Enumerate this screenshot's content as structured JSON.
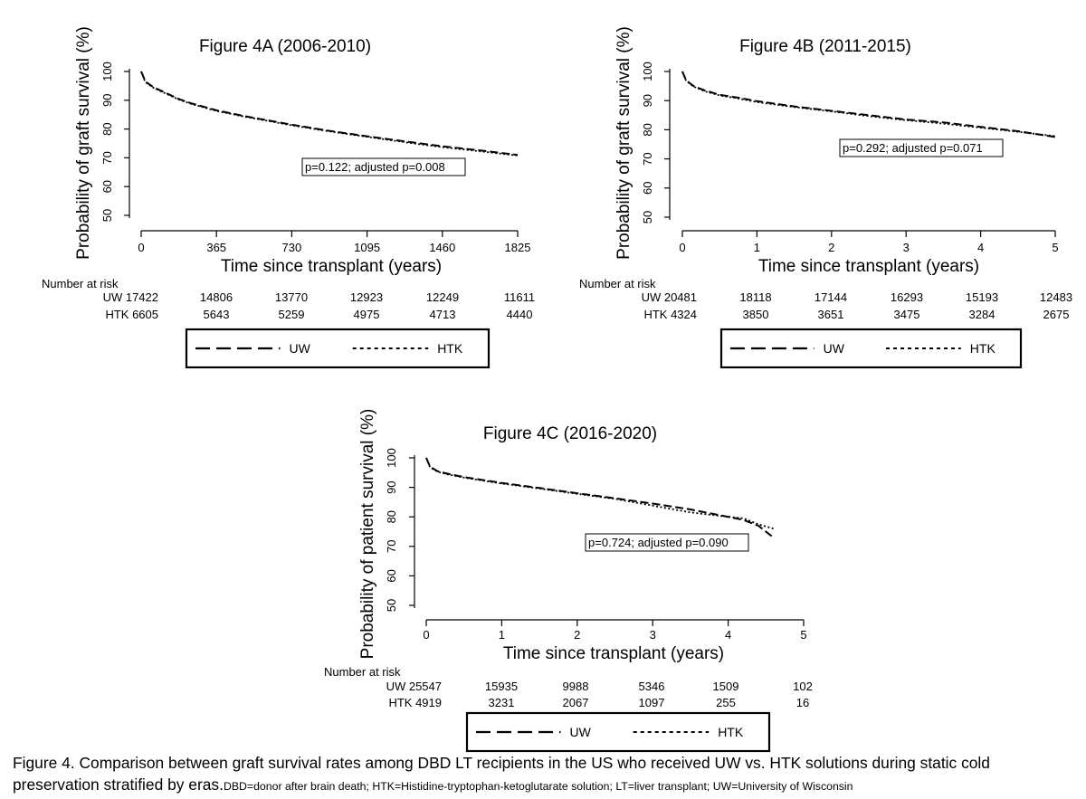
{
  "chart_data": [
    {
      "type": "line",
      "title": "Figure 4A (2006-2010)",
      "xlabel": "Time since transplant (years)",
      "ylabel": "Probability of graft survival (%)",
      "xticks": [
        "0",
        "365",
        "730",
        "1095",
        "1460",
        "1825"
      ],
      "xlim": [
        0,
        1825
      ],
      "yticks": [
        "50",
        "60",
        "70",
        "80",
        "90",
        "100"
      ],
      "ylim": [
        50,
        100
      ],
      "series": [
        {
          "name": "UW",
          "style": "dashed",
          "x": [
            0,
            20,
            60,
            120,
            180,
            240,
            365,
            500,
            730,
            900,
            1095,
            1300,
            1460,
            1650,
            1825
          ],
          "y": [
            100,
            96.5,
            94.5,
            92.5,
            90.5,
            89,
            86.5,
            84.5,
            81.5,
            79.5,
            77.5,
            75.5,
            74,
            72.5,
            71
          ]
        },
        {
          "name": "HTK",
          "style": "dotted",
          "x": [
            0,
            20,
            60,
            120,
            180,
            240,
            365,
            500,
            730,
            900,
            1095,
            1300,
            1460,
            1650,
            1825
          ],
          "y": [
            100,
            96.3,
            94.3,
            92.3,
            90.3,
            88.8,
            86.3,
            84.3,
            81.3,
            79.3,
            77.3,
            75.2,
            73.7,
            72.2,
            70.8
          ]
        }
      ],
      "annotation": "p=0.122; adjusted p=0.008",
      "risk_table": {
        "header": "Number at risk",
        "rows": [
          {
            "label": "UW",
            "values": [
              "17422",
              "14806",
              "13770",
              "12923",
              "12249",
              "11611"
            ]
          },
          {
            "label": "HTK",
            "values": [
              "6605",
              "5643",
              "5259",
              "4975",
              "4713",
              "4440"
            ]
          }
        ]
      },
      "legend": [
        "UW",
        "HTK"
      ]
    },
    {
      "type": "line",
      "title": "Figure 4B (2011-2015)",
      "xlabel": "Time since transplant (years)",
      "ylabel": "Probability of graft survival (%)",
      "xticks": [
        "0",
        "1",
        "2",
        "3",
        "4",
        "5"
      ],
      "xlim": [
        0,
        5
      ],
      "yticks": [
        "50",
        "60",
        "70",
        "80",
        "90",
        "100"
      ],
      "ylim": [
        50,
        100
      ],
      "series": [
        {
          "name": "UW",
          "style": "dashed",
          "x": [
            0,
            0.05,
            0.15,
            0.3,
            0.5,
            0.75,
            1,
            1.5,
            2,
            2.5,
            3,
            3.5,
            4,
            4.5,
            5
          ],
          "y": [
            100,
            97,
            95,
            93.5,
            92,
            91,
            89.8,
            88,
            86.5,
            85,
            83.5,
            82.5,
            81,
            79.5,
            77.5
          ]
        },
        {
          "name": "HTK",
          "style": "dotted",
          "x": [
            0,
            0.05,
            0.15,
            0.3,
            0.5,
            0.75,
            1,
            1.5,
            2,
            2.5,
            3,
            3.5,
            4,
            4.5,
            5
          ],
          "y": [
            100,
            96.8,
            94.8,
            93.2,
            91.8,
            90.7,
            89.5,
            87.8,
            86.3,
            84.7,
            83.3,
            82.1,
            80.7,
            79.3,
            77.8
          ]
        }
      ],
      "annotation": "p=0.292; adjusted p=0.071",
      "risk_table": {
        "header": "Number at risk",
        "rows": [
          {
            "label": "UW",
            "values": [
              "20481",
              "18118",
              "17144",
              "16293",
              "15193",
              "12483"
            ]
          },
          {
            "label": "HTK",
            "values": [
              "4324",
              "3850",
              "3651",
              "3475",
              "3284",
              "2675"
            ]
          }
        ]
      },
      "legend": [
        "UW",
        "HTK"
      ]
    },
    {
      "type": "line",
      "title": "Figure 4C (2016-2020)",
      "xlabel": "Time since transplant (years)",
      "ylabel": "Probability of patient survival (%)",
      "xticks": [
        "0",
        "1",
        "2",
        "3",
        "4",
        "5"
      ],
      "xlim": [
        0,
        5
      ],
      "yticks": [
        "50",
        "60",
        "70",
        "80",
        "90",
        "100"
      ],
      "ylim": [
        50,
        100
      ],
      "series": [
        {
          "name": "UW",
          "style": "dashed",
          "x": [
            0,
            0.05,
            0.15,
            0.3,
            0.5,
            0.75,
            1,
            1.5,
            2,
            2.5,
            3,
            3.5,
            3.9,
            4.2,
            4.4,
            4.6
          ],
          "y": [
            100,
            97,
            95.5,
            94.5,
            93.5,
            92.5,
            91.5,
            89.8,
            88,
            86.3,
            84.5,
            82.5,
            80.5,
            79,
            77,
            73
          ]
        },
        {
          "name": "HTK",
          "style": "dotted",
          "x": [
            0,
            0.05,
            0.15,
            0.3,
            0.5,
            0.75,
            1,
            1.5,
            2,
            2.5,
            3,
            3.5,
            3.9,
            4.2,
            4.4,
            4.6
          ],
          "y": [
            100,
            96.8,
            95.3,
            94.3,
            93.3,
            92.3,
            91.3,
            89.6,
            87.8,
            86.1,
            83.8,
            81.5,
            80.3,
            79.5,
            77.5,
            76
          ]
        }
      ],
      "annotation": "p=0.724; adjusted p=0.090",
      "risk_table": {
        "header": "Number at risk",
        "rows": [
          {
            "label": "UW",
            "values": [
              "25547",
              "15935",
              "9988",
              "5346",
              "1509",
              "102"
            ]
          },
          {
            "label": "HTK",
            "values": [
              "4919",
              "3231",
              "2067",
              "1097",
              "255",
              "16"
            ]
          }
        ]
      },
      "legend": [
        "UW",
        "HTK"
      ]
    }
  ],
  "caption": {
    "line1": "Figure 4. Comparison between graft survival rates among DBD LT recipients in the US who received UW vs. HTK solutions during static cold",
    "line2_main": "preservation stratified by eras.",
    "line2_small": "DBD=donor after brain death; HTK=Histidine-tryptophan-ketoglutarate solution; LT=liver transplant; UW=University of Wisconsin"
  }
}
